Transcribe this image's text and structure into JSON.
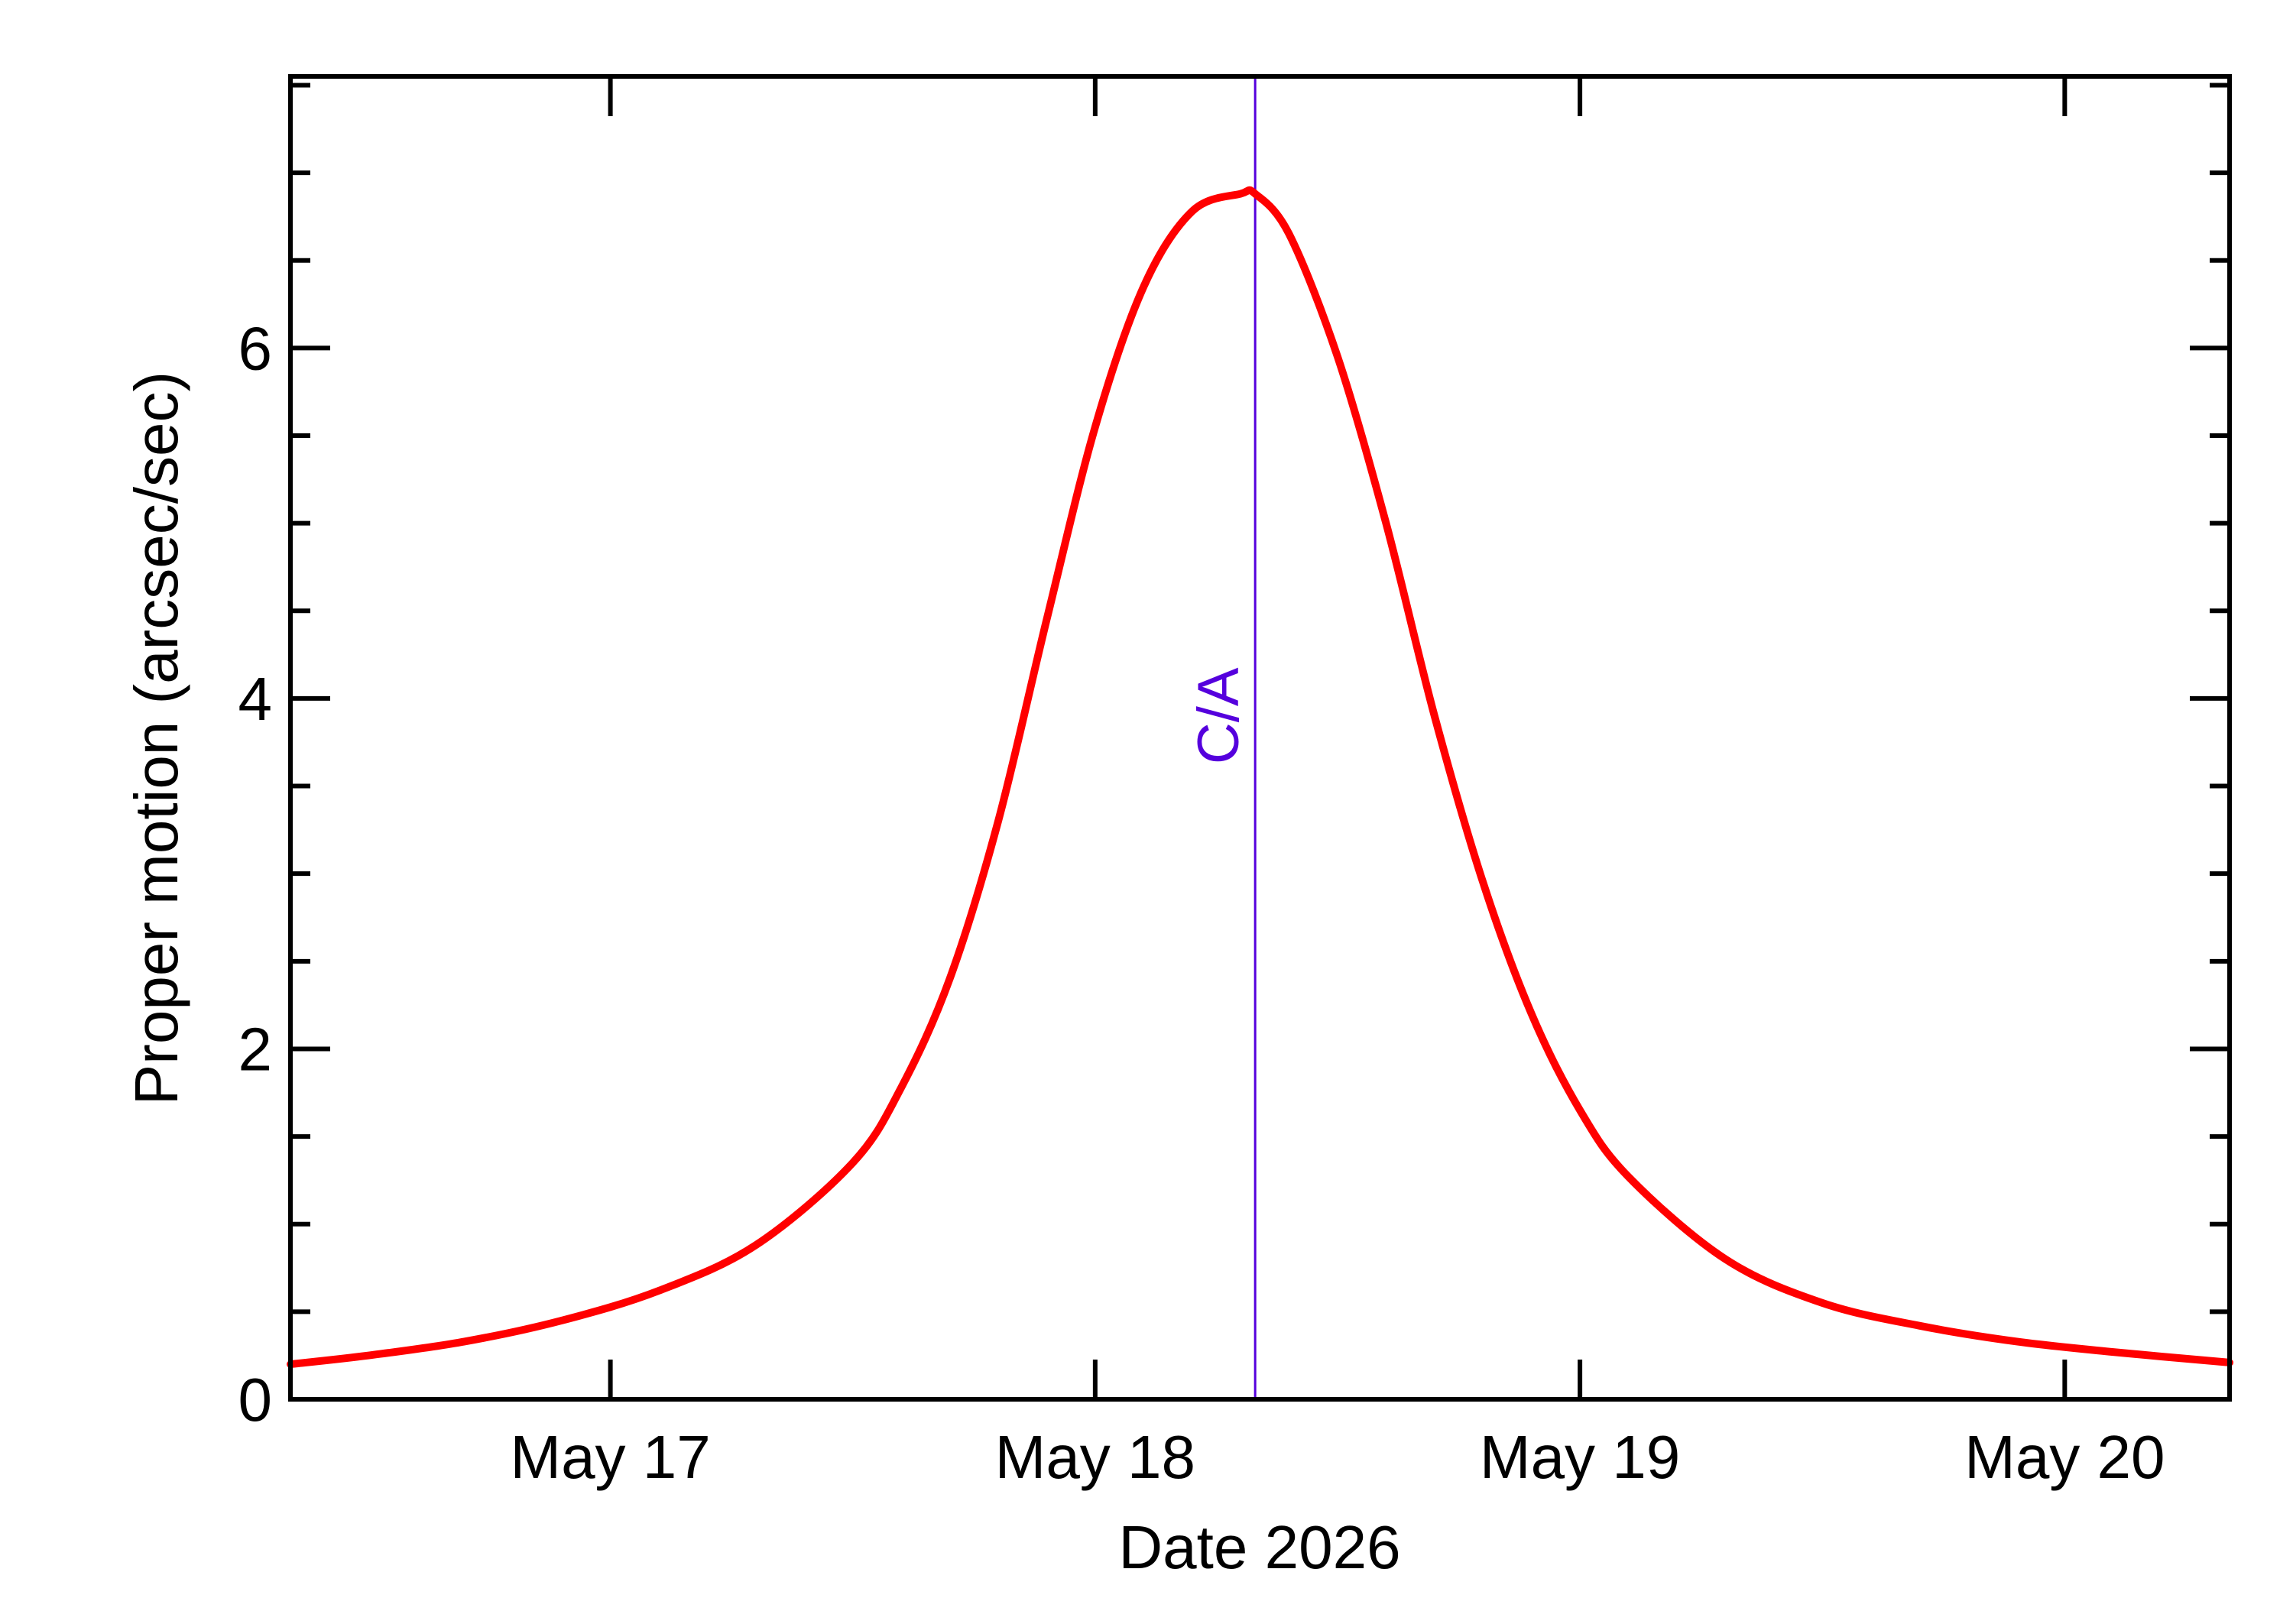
{
  "chart_data": {
    "type": "line",
    "title": "",
    "xlabel": "Date 2026",
    "ylabel": "Proper motion (arcsec/sec)",
    "x_unit": "days, May 2026",
    "xlim": [
      16.34,
      20.34
    ],
    "ylim": [
      0,
      7.55
    ],
    "x_ticks": [
      {
        "value": 17,
        "label": "May 17"
      },
      {
        "value": 18,
        "label": "May 18"
      },
      {
        "value": 19,
        "label": "May 19"
      },
      {
        "value": 20,
        "label": "May 20"
      }
    ],
    "x_minor_ticks": [],
    "y_ticks": [
      {
        "value": 0,
        "label": "0"
      },
      {
        "value": 2,
        "label": "2"
      },
      {
        "value": 4,
        "label": "4"
      },
      {
        "value": 6,
        "label": "6"
      }
    ],
    "y_minor_ticks": [
      0.5,
      1,
      1.5,
      2.5,
      3,
      3.5,
      4.5,
      5,
      5.5,
      6.5,
      7,
      7.5
    ],
    "grid": false,
    "ca_marker": {
      "x": 18.33,
      "label": "C/A",
      "color": "#5500dd"
    },
    "series": [
      {
        "color": "#ff0000",
        "x": [
          16.34,
          16.5,
          16.7,
          16.9,
          17.1,
          17.3,
          17.5,
          17.6,
          17.7,
          17.8,
          17.9,
          18.0,
          18.1,
          18.2,
          18.3,
          18.33,
          18.4,
          18.5,
          18.6,
          18.7,
          18.8,
          18.9,
          19.0,
          19.1,
          19.3,
          19.5,
          19.7,
          19.9,
          20.1,
          20.34
        ],
        "y": [
          0.2,
          0.25,
          0.33,
          0.45,
          0.62,
          0.88,
          1.35,
          1.78,
          2.4,
          3.3,
          4.45,
          5.55,
          6.35,
          6.78,
          6.88,
          6.88,
          6.65,
          5.95,
          5.0,
          3.9,
          2.95,
          2.2,
          1.65,
          1.27,
          0.8,
          0.55,
          0.42,
          0.33,
          0.27,
          0.21
        ]
      }
    ]
  }
}
